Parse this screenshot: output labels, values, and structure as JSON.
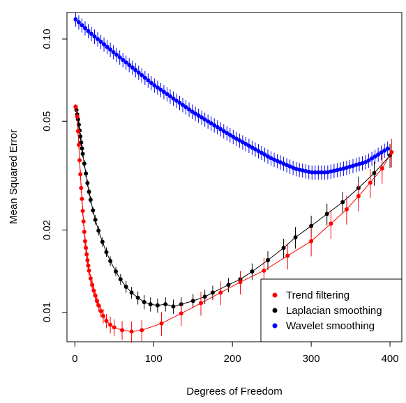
{
  "chart_data": {
    "type": "line",
    "xlabel": "Degrees of Freedom",
    "ylabel": "Mean Squared Error",
    "y_scale": "log",
    "xlim": [
      -10,
      415
    ],
    "ylim": [
      0.0078,
      0.125
    ],
    "xticks": [
      0,
      100,
      200,
      300,
      400
    ],
    "xtick_labels": [
      "0",
      "100",
      "200",
      "300",
      "400"
    ],
    "yticks": [
      0.01,
      0.02,
      0.05,
      0.1
    ],
    "ytick_labels": [
      "0.01",
      "0.02",
      "0.05",
      "0.10"
    ],
    "grid": false,
    "legend_position": "bottom-right",
    "series": [
      {
        "name": "Trend filtering",
        "color": "#ff0000",
        "x": [
          1,
          3,
          4,
          5,
          6,
          7,
          8,
          9,
          10,
          11,
          12,
          13,
          14,
          15,
          16,
          17,
          18,
          20,
          22,
          24,
          26,
          28,
          30,
          33,
          36,
          40,
          45,
          50,
          60,
          72,
          85,
          110,
          135,
          160,
          185,
          210,
          240,
          270,
          300,
          325,
          345,
          360,
          375,
          390,
          402
        ],
        "y": [
          0.0565,
          0.052,
          0.046,
          0.041,
          0.036,
          0.032,
          0.0285,
          0.026,
          0.0235,
          0.0215,
          0.0197,
          0.0182,
          0.0172,
          0.0163,
          0.0155,
          0.0148,
          0.0142,
          0.0133,
          0.0126,
          0.012,
          0.0115,
          0.011,
          0.0106,
          0.0101,
          0.0097,
          0.0093,
          0.009,
          0.0088,
          0.0086,
          0.0085,
          0.0086,
          0.0091,
          0.0099,
          0.0108,
          0.0118,
          0.0129,
          0.0142,
          0.0161,
          0.0182,
          0.0211,
          0.0238,
          0.0266,
          0.0298,
          0.0336,
          0.0385
        ],
        "error_half_width_fraction": [
          0.02,
          0.02,
          0.03,
          0.03,
          0.03,
          0.04,
          0.04,
          0.04,
          0.04,
          0.04,
          0.04,
          0.04,
          0.04,
          0.04,
          0.04,
          0.04,
          0.04,
          0.04,
          0.04,
          0.04,
          0.04,
          0.045,
          0.05,
          0.05,
          0.06,
          0.06,
          0.07,
          0.07,
          0.08,
          0.09,
          0.09,
          0.1,
          0.1,
          0.1,
          0.1,
          0.1,
          0.11,
          0.11,
          0.12,
          0.12,
          0.12,
          0.12,
          0.12,
          0.12,
          0.12
        ]
      },
      {
        "name": "Laplacian smoothing",
        "color": "#000000",
        "x": [
          1,
          2,
          3,
          4,
          5,
          6,
          7,
          8,
          9,
          10,
          12,
          14,
          16,
          18,
          20,
          23,
          26,
          30,
          35,
          40,
          45,
          52,
          58,
          65,
          72,
          80,
          88,
          96,
          105,
          115,
          125,
          135,
          150,
          165,
          175,
          195,
          210,
          225,
          245,
          265,
          280,
          300,
          320,
          340,
          360,
          380,
          400
        ],
        "y": [
          0.0565,
          0.055,
          0.053,
          0.0508,
          0.0486,
          0.0463,
          0.044,
          0.0418,
          0.0398,
          0.038,
          0.035,
          0.0322,
          0.0297,
          0.0276,
          0.0258,
          0.0236,
          0.0218,
          0.0199,
          0.0181,
          0.0166,
          0.0154,
          0.0141,
          0.0132,
          0.0124,
          0.0118,
          0.0113,
          0.0109,
          0.0107,
          0.0106,
          0.0107,
          0.0105,
          0.0107,
          0.011,
          0.0114,
          0.0118,
          0.0126,
          0.0132,
          0.0141,
          0.0155,
          0.0172,
          0.0188,
          0.0207,
          0.0229,
          0.0253,
          0.0285,
          0.0323,
          0.0375
        ],
        "error_half_width_fraction": [
          0.02,
          0.02,
          0.02,
          0.03,
          0.03,
          0.03,
          0.03,
          0.03,
          0.03,
          0.03,
          0.03,
          0.03,
          0.03,
          0.03,
          0.03,
          0.03,
          0.04,
          0.04,
          0.04,
          0.04,
          0.04,
          0.04,
          0.045,
          0.05,
          0.05,
          0.055,
          0.06,
          0.06,
          0.06,
          0.06,
          0.06,
          0.06,
          0.06,
          0.06,
          0.06,
          0.06,
          0.07,
          0.07,
          0.08,
          0.08,
          0.09,
          0.09,
          0.09,
          0.09,
          0.1,
          0.1,
          0.1
        ]
      },
      {
        "name": "Wavelet smoothing",
        "color": "#0000ff",
        "x_start": 1,
        "x_step": 4,
        "y_anchor_x": [
          1,
          20,
          50,
          100,
          150,
          200,
          250,
          280,
          300,
          320,
          340,
          370,
          400
        ],
        "y_anchor_y": [
          0.118,
          0.105,
          0.089,
          0.068,
          0.054,
          0.044,
          0.0365,
          0.0335,
          0.0325,
          0.0325,
          0.0335,
          0.0355,
          0.0402
        ],
        "error_half_width_fraction": 0.06
      }
    ]
  }
}
